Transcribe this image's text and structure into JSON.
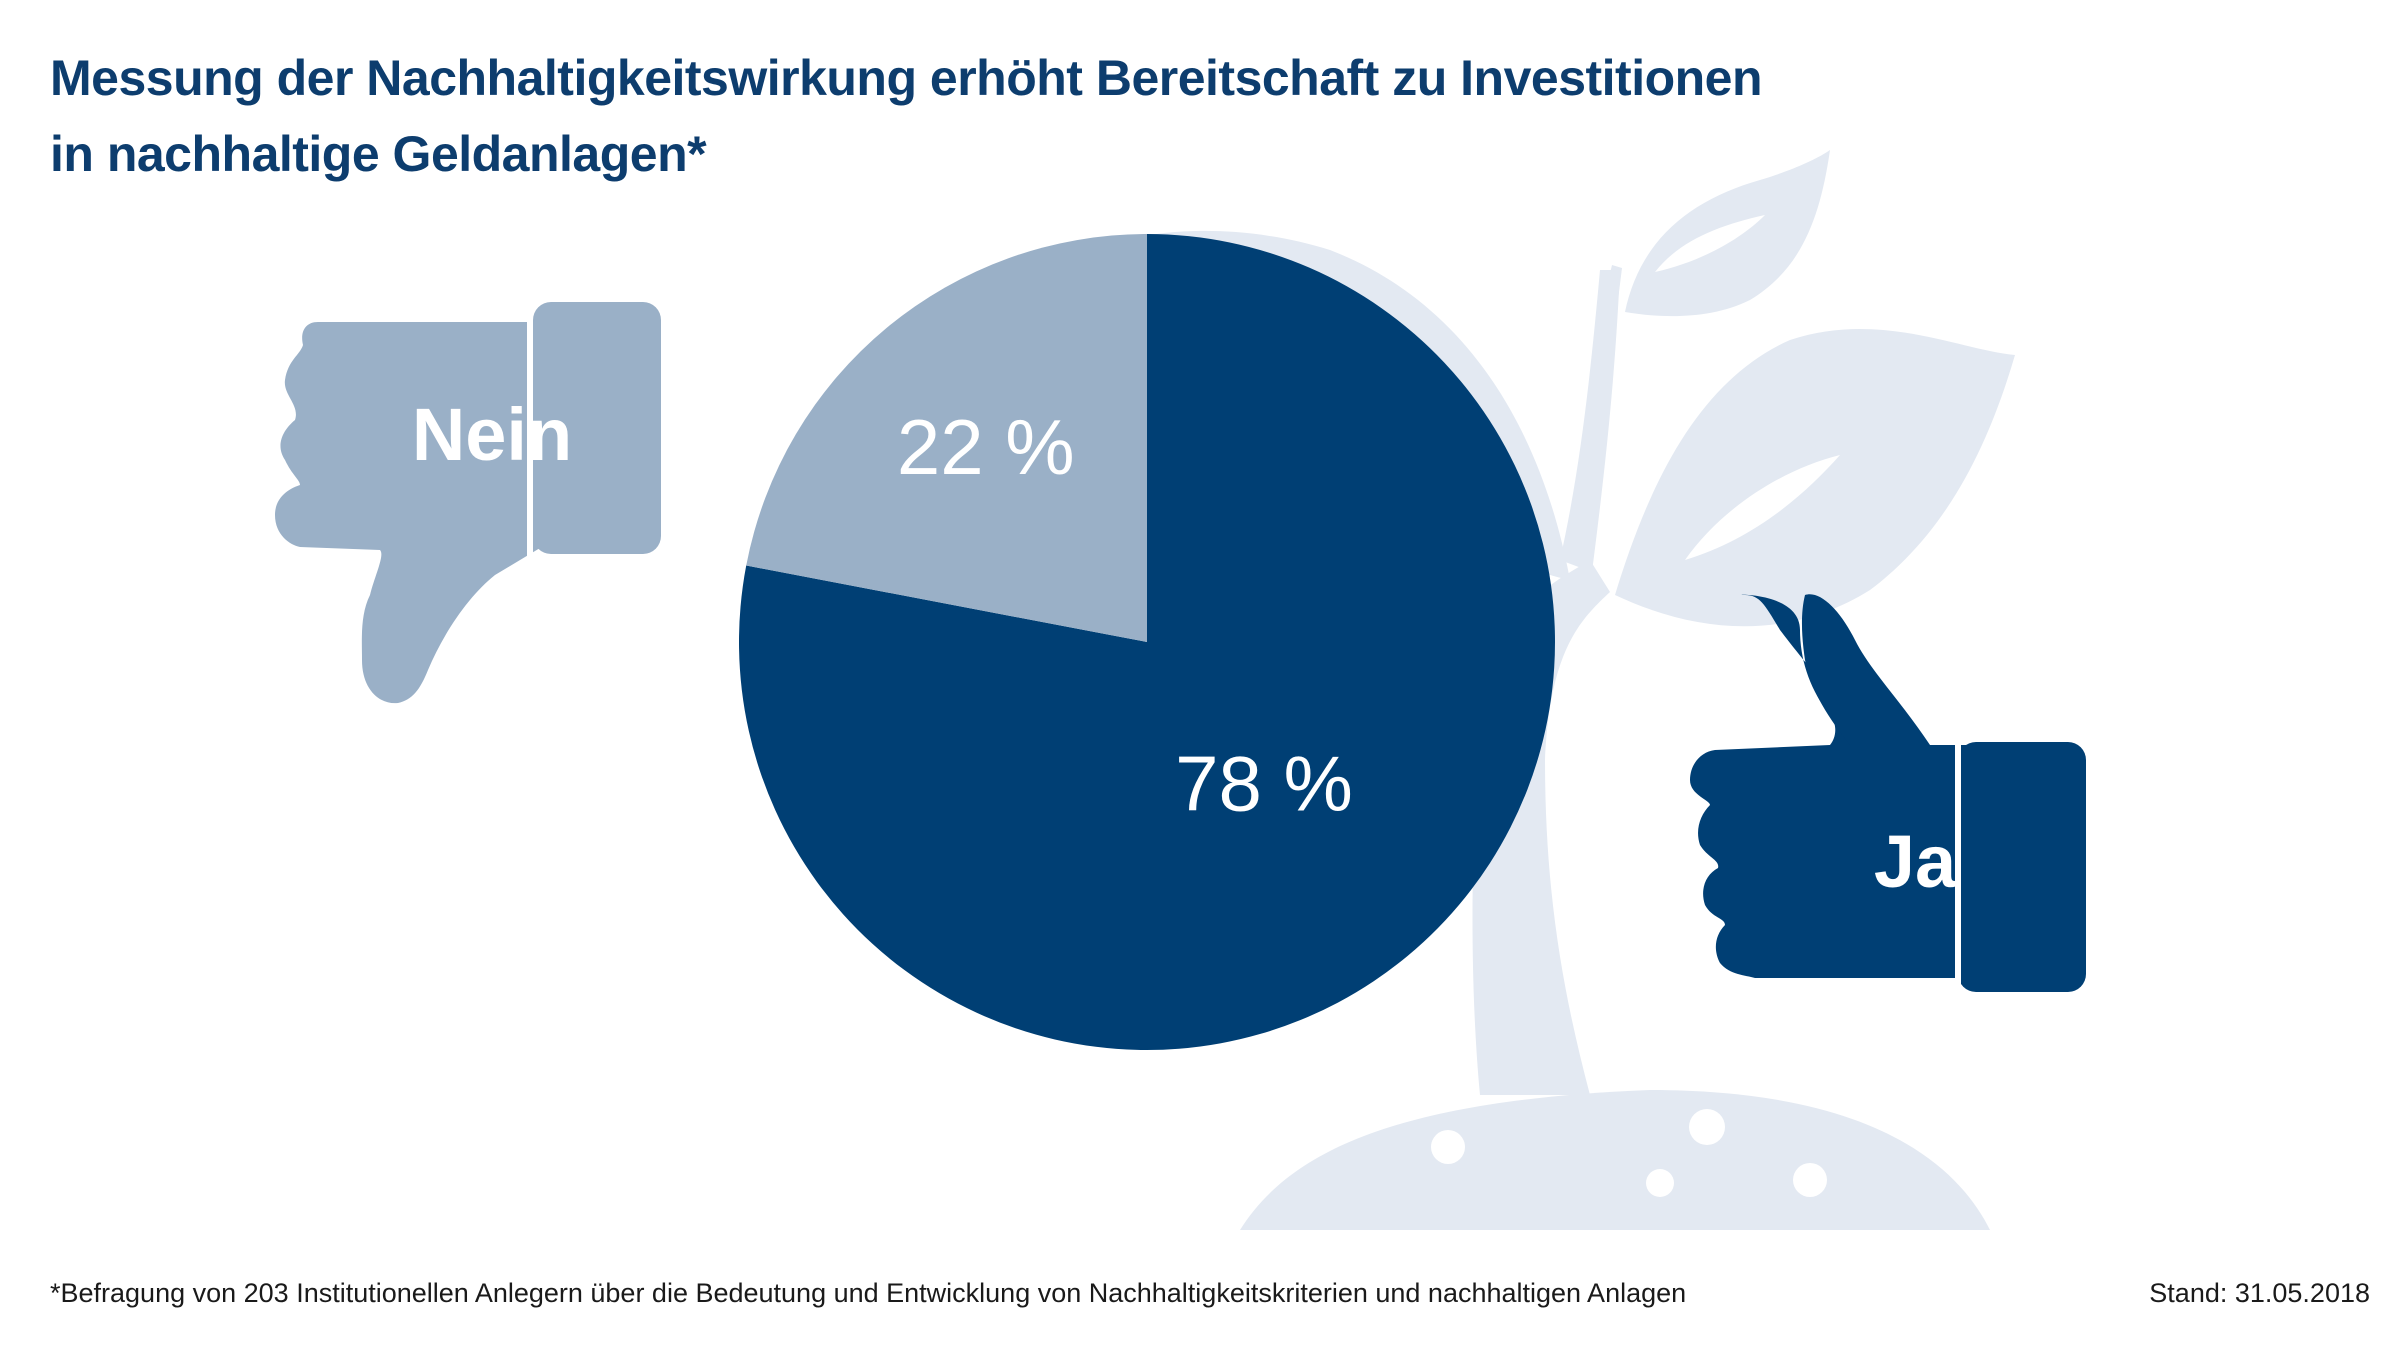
{
  "title": {
    "line1": "Messung der Nachhaltigkeitswirkung erhöht Bereitschaft zu Investitionen",
    "line2": "in nachhaltige Geldanlagen*"
  },
  "footnote": "*Befragung von 203 Institutionellen Anlegern über die Bedeutung und Entwicklung von Nachhaltigkeitskriterien und nachhaltigen Anlagen",
  "stand": "Stand: 31.05.2018",
  "colors": {
    "ja": "#003f74",
    "nein": "#9ab0c7",
    "plant": "#e3e9f2"
  },
  "icons": {
    "nein": "thumbs-down-icon",
    "ja": "thumbs-up-icon",
    "background": "plant-illustration"
  },
  "chart_data": {
    "type": "pie",
    "categories": [
      "Ja",
      "Nein"
    ],
    "values": [
      78,
      22
    ],
    "labels": [
      "78 %",
      "22 %"
    ],
    "title": "Messung der Nachhaltigkeitswirkung erhöht Bereitschaft zu Investitionen in nachhaltige Geldanlagen*",
    "legend": [
      "Nein",
      "Ja"
    ]
  }
}
